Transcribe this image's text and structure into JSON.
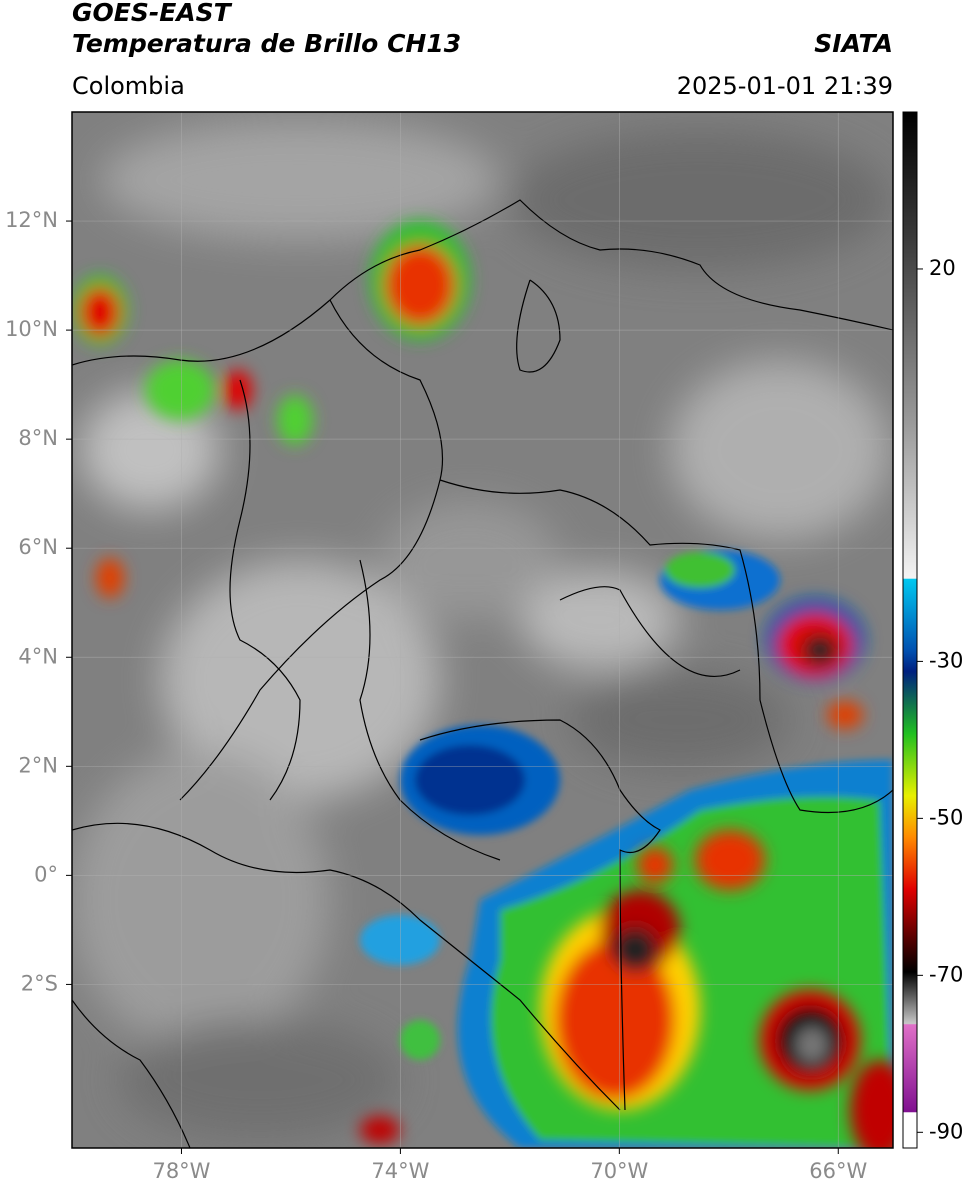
{
  "header": {
    "title": "GOES-EAST",
    "subtitle": "Temperatura de Brillo CH13",
    "source": "SIATA",
    "region": "Colombia",
    "datetime": "2025-01-01 21:39"
  },
  "map": {
    "lonlim": [
      -80,
      -65
    ],
    "latlim": [
      -5,
      14
    ],
    "xticks": [
      {
        "value": -78,
        "label": "78°W"
      },
      {
        "value": -74,
        "label": "74°W"
      },
      {
        "value": -70,
        "label": "70°W"
      },
      {
        "value": -66,
        "label": "66°W"
      }
    ],
    "yticks": [
      {
        "value": 12,
        "label": "12°N"
      },
      {
        "value": 10,
        "label": "10°N"
      },
      {
        "value": 8,
        "label": "8°N"
      },
      {
        "value": 6,
        "label": "6°N"
      },
      {
        "value": 4,
        "label": "4°N"
      },
      {
        "value": 2,
        "label": "2°N"
      },
      {
        "value": 0,
        "label": "0°"
      },
      {
        "value": -2,
        "label": "2°S"
      }
    ]
  },
  "colorbar": {
    "lim": [
      -92,
      40
    ],
    "ticks": [
      20,
      -30,
      -50,
      -70,
      -90
    ]
  }
}
